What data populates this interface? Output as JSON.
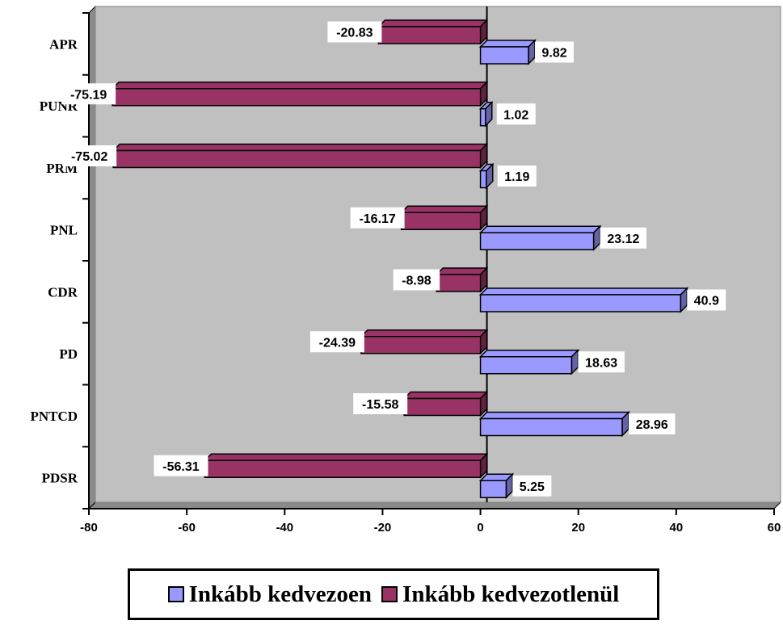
{
  "chart_data": {
    "type": "bar",
    "orientation": "horizontal",
    "categories": [
      "APR",
      "PUNR",
      "PRM",
      "PNL",
      "CDR",
      "PD",
      "PNTCD",
      "PDSR"
    ],
    "series": [
      {
        "name": "Inkább kedvezoen",
        "color": "#9999ff",
        "values": [
          9.82,
          1.02,
          1.19,
          23.12,
          40.9,
          18.63,
          28.96,
          5.25
        ]
      },
      {
        "name": "Inkább kedvezotlenül",
        "color": "#993366",
        "values": [
          -20.83,
          -75.19,
          -75.02,
          -16.17,
          -8.98,
          -24.39,
          -15.58,
          -56.31
        ]
      }
    ],
    "x_ticks": [
      -80,
      -60,
      -40,
      -20,
      0,
      20,
      40,
      60
    ],
    "xlim": [
      -80,
      60
    ],
    "plot_background": "#c0c0c0",
    "grid": false,
    "legend_position": "bottom",
    "title": "",
    "xlabel": "",
    "ylabel": ""
  }
}
